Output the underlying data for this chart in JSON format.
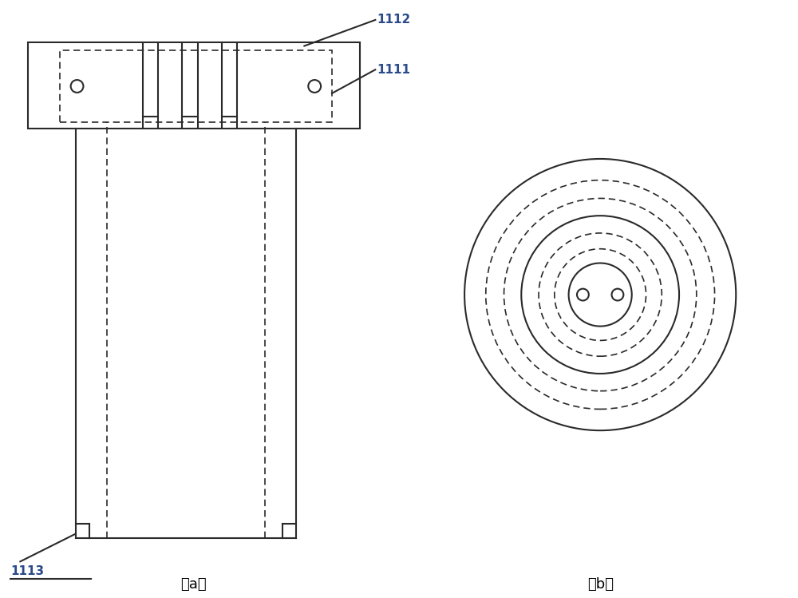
{
  "bg_color": "#ffffff",
  "line_color": "#2a2a2a",
  "label_color": "#2a4a8a",
  "fig_width": 10.0,
  "fig_height": 7.49,
  "label_1112": "1112",
  "label_1111": "1111",
  "label_1113": "1113",
  "label_a": "（a）",
  "label_b": "（b）"
}
